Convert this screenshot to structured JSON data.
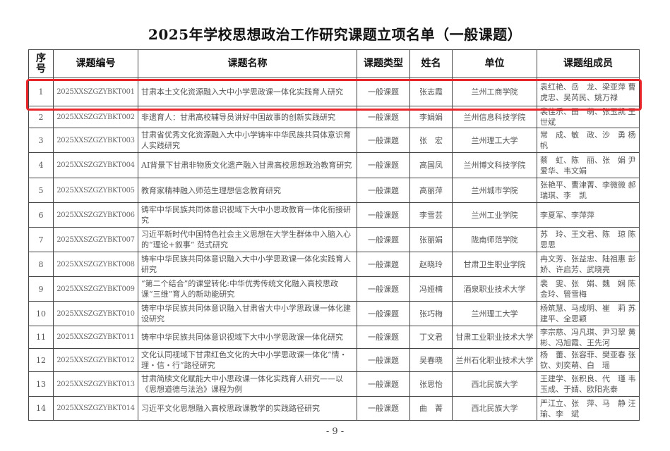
{
  "title": "2025年学校思想政治工作研究课题立项名单（一般课题）",
  "headers": [
    "序号",
    "课题编号",
    "课题名称",
    "课题类型",
    "姓名",
    "单位",
    "课题组成员"
  ],
  "highlight_color": "#e8262a",
  "rows": [
    {
      "no": "1",
      "code": "2025XXSZGZYBKT001",
      "name": "甘肃本土文化资源融入大中小学思政课一体化实践育人研究",
      "type": "一般课题",
      "person": "张志霞",
      "unit": "兰州工商学院",
      "members": "袁红艳、岳　龙、梁亚萍 曹虎忠、吴芮民、姚万禄"
    },
    {
      "no": "2",
      "code": "2025XXSZGZYBKT002",
      "name": "非遗育人：甘肃高校辅导员讲好中国故事的创新实践研究",
      "type": "一般课题",
      "person": "李娟娟",
      "unit": "兰州信息科技学院",
      "members": "裴佳乐、田　萌、张玉凯 王世斌"
    },
    {
      "no": "3",
      "code": "2025XXSZGZYBKT003",
      "name": "甘肃省优秀文化资源融入大中小学铸牢中华民族共同体意识育人实践研究",
      "type": "一般课题",
      "person": "张　宏",
      "unit": "兰州理工大学",
      "members": "常　成、敏　政、沙　勇 杨　帆"
    },
    {
      "no": "4",
      "code": "2025XXSZGZYBKT004",
      "name": "AI背景下甘肃非物质文化遗产融入甘肃高校思想政治教育研究",
      "type": "一般课题",
      "person": "高国凤",
      "unit": "兰州博文科技学院",
      "members": "蔡　虹、陈　丽、张　娟 尹爱华、韦文娟"
    },
    {
      "no": "5",
      "code": "2025XXSZGZYBKT005",
      "name": "教育家精神融入师范生理想信念教育研究",
      "type": "一般课题",
      "person": "高丽萍",
      "unit": "兰州城市学院",
      "members": "张艳平、曹津菁、李微微 郝瑞琪、李　凯"
    },
    {
      "no": "6",
      "code": "2025XXSZGZYBKT006",
      "name": "铸牢中华民族共同体意识视域下大中小思政教育一体化衔接研究",
      "type": "一般课题",
      "person": "李雪芸",
      "unit": "兰州工业学院",
      "members": "李夏军、李萍萍"
    },
    {
      "no": "7",
      "code": "2025XXSZGZYBKT007",
      "name": "习近平新时代中国特色社会主义思想在大学生群体中入脑入心的“理论+叙事” 范式研究",
      "type": "一般课题",
      "person": "张丽娟",
      "unit": "陇南师范学院",
      "members": "苏　玲、王文君、陈　琼 陈思思"
    },
    {
      "no": "8",
      "code": "2025XXSZGZYBKT008",
      "name": "铸牢中华民族共同体意识融入大中小学思政课一体化实践育人研究",
      "type": "一般课题",
      "person": "赵晓玲",
      "unit": "甘肃卫生职业学院",
      "members": "冉文芳、张益忠、陆祖惠 彭　娇、许启芳、武晓亮"
    },
    {
      "no": "9",
      "code": "2025XXSZGZYBKT009",
      "name": "“第二个结合”的课堂转化:中华优秀传统文化融入高校思政课“三维”育人的新动能研究",
      "type": "一般课题",
      "person": "冯娅楠",
      "unit": "酒泉职业技术大学",
      "members": "裴　雯、张　娟、魏　娴 陈金玲、管雪梅"
    },
    {
      "no": "10",
      "code": "2025XXSZGZYBKT010",
      "name": "铸牢中华民族共同体意识融入甘肃省大中小学思政课一体化建设研究",
      "type": "一般课题",
      "person": "张巧梅",
      "unit": "兰州理工大学",
      "members": "杨筑慧、马成明、崔　莉 苏建平、全思颖"
    },
    {
      "no": "11",
      "code": "2025XXSZGZYBKT011",
      "name": "铸牢中华民族共同体意识视域下大中小学思政课一体化研究",
      "type": "一般课题",
      "person": "丁文君",
      "unit": "甘肃工业职业技术大学",
      "members": "李宗慈、冯凡琪、尹习翠 黄　彬、冯旭霞、王先河"
    },
    {
      "no": "12",
      "code": "2025XXSZGZYBKT012",
      "name": "文化认同视域下甘肃红色文化的大中小学思政课一体化“情・理・信・行”路径研究",
      "type": "一般课题",
      "person": "吴春晓",
      "unit": "兰州石化职业技术大学",
      "members": "杨　蕾、张容菲、樊亚春 张　钦、刘奕萌、白　瑶"
    },
    {
      "no": "13",
      "code": "2025XXSZGZYBKT013",
      "name": "甘肃简牍文化赋能大中小思政课一体化实践育人研究——以《思想道德与法治》课程为例",
      "type": "一般课题",
      "person": "张思怡",
      "unit": "西北民族大学",
      "members": "王建学、张积良、代　瑾 韦玉成、于婧、欧阳兆泰"
    },
    {
      "no": "14",
      "code": "2025XXSZGZYBKT014",
      "name": "习近平文化思想融入高校思政课教学的实践路径研究",
      "type": "一般课题",
      "person": "曲　菁",
      "unit": "西北民族大学",
      "members": "严江立、张　萍、马　静 汪　瑜、李　斌"
    }
  ],
  "page_number": "- 9 -"
}
